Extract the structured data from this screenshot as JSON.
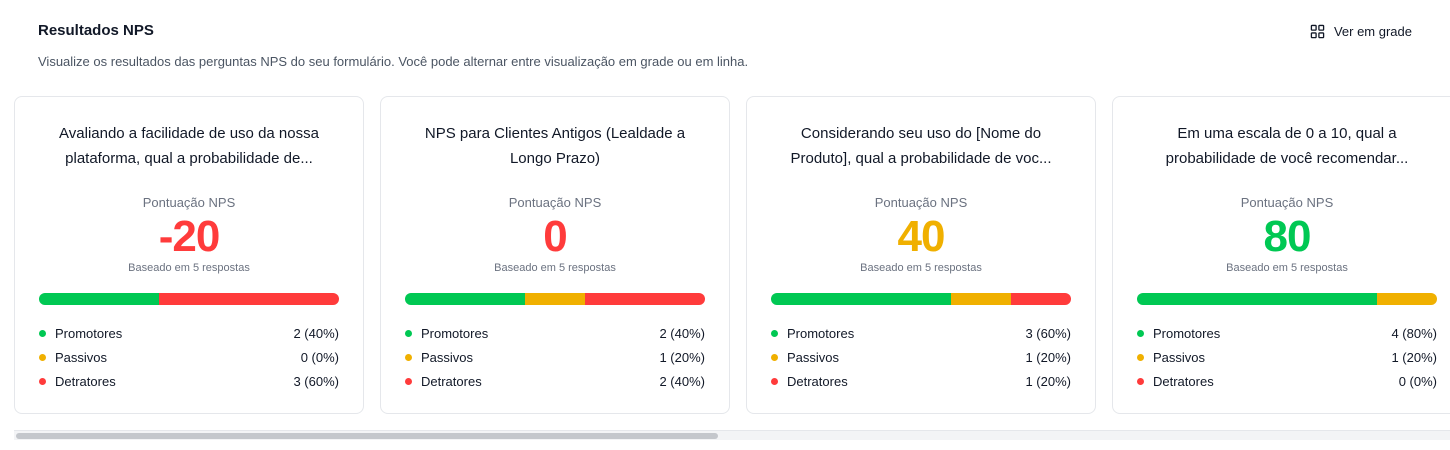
{
  "header": {
    "title": "Resultados NPS",
    "description": "Visualize os resultados das perguntas NPS do seu formulário. Você pode alternar entre visualização em grade ou em linha.",
    "view_toggle_label": "Ver em grade",
    "view_toggle_icon": "grid-icon"
  },
  "colors": {
    "promoters": "#00c853",
    "passives": "#f0b000",
    "detractors": "#ff3b3b",
    "score_negative": "#ff3b3b",
    "score_neutral": "#ff3b3b",
    "score_mid": "#f0b000",
    "score_high": "#00c853"
  },
  "cards": [
    {
      "question": "Avaliando a facilidade de uso da nossa plataforma, qual a probabilidade de...",
      "score_label": "Pontuação NPS",
      "score": "-20",
      "score_color": "#ff3b3b",
      "based_on": "Baseado em 5 respostas",
      "shares": {
        "promoters": 40,
        "passives": 0,
        "detractors": 60
      },
      "legend": [
        {
          "label": "Promotores",
          "value": "2 (40%)",
          "color": "#00c853"
        },
        {
          "label": "Passivos",
          "value": "0 (0%)",
          "color": "#f0b000"
        },
        {
          "label": "Detratores",
          "value": "3 (60%)",
          "color": "#ff3b3b"
        }
      ]
    },
    {
      "question": "NPS para Clientes Antigos (Lealdade a Longo Prazo)",
      "score_label": "Pontuação NPS",
      "score": "0",
      "score_color": "#ff3b3b",
      "based_on": "Baseado em 5 respostas",
      "shares": {
        "promoters": 40,
        "passives": 20,
        "detractors": 40
      },
      "legend": [
        {
          "label": "Promotores",
          "value": "2 (40%)",
          "color": "#00c853"
        },
        {
          "label": "Passivos",
          "value": "1 (20%)",
          "color": "#f0b000"
        },
        {
          "label": "Detratores",
          "value": "2 (40%)",
          "color": "#ff3b3b"
        }
      ]
    },
    {
      "question": "Considerando seu uso do [Nome do Produto], qual a probabilidade de voc...",
      "score_label": "Pontuação NPS",
      "score": "40",
      "score_color": "#f0b000",
      "based_on": "Baseado em 5 respostas",
      "shares": {
        "promoters": 60,
        "passives": 20,
        "detractors": 20
      },
      "legend": [
        {
          "label": "Promotores",
          "value": "3 (60%)",
          "color": "#00c853"
        },
        {
          "label": "Passivos",
          "value": "1 (20%)",
          "color": "#f0b000"
        },
        {
          "label": "Detratores",
          "value": "1 (20%)",
          "color": "#ff3b3b"
        }
      ]
    },
    {
      "question": "Em uma escala de 0 a 10, qual a probabilidade de você recomendar...",
      "score_label": "Pontuação NPS",
      "score": "80",
      "score_color": "#00c853",
      "based_on": "Baseado em 5 respostas",
      "shares": {
        "promoters": 80,
        "passives": 20,
        "detractors": 0
      },
      "legend": [
        {
          "label": "Promotores",
          "value": "4 (80%)",
          "color": "#00c853"
        },
        {
          "label": "Passivos",
          "value": "1 (20%)",
          "color": "#f0b000"
        },
        {
          "label": "Detratores",
          "value": "0 (0%)",
          "color": "#ff3b3b"
        }
      ]
    }
  ],
  "scrollbar": {
    "visible_fraction": 0.49
  }
}
